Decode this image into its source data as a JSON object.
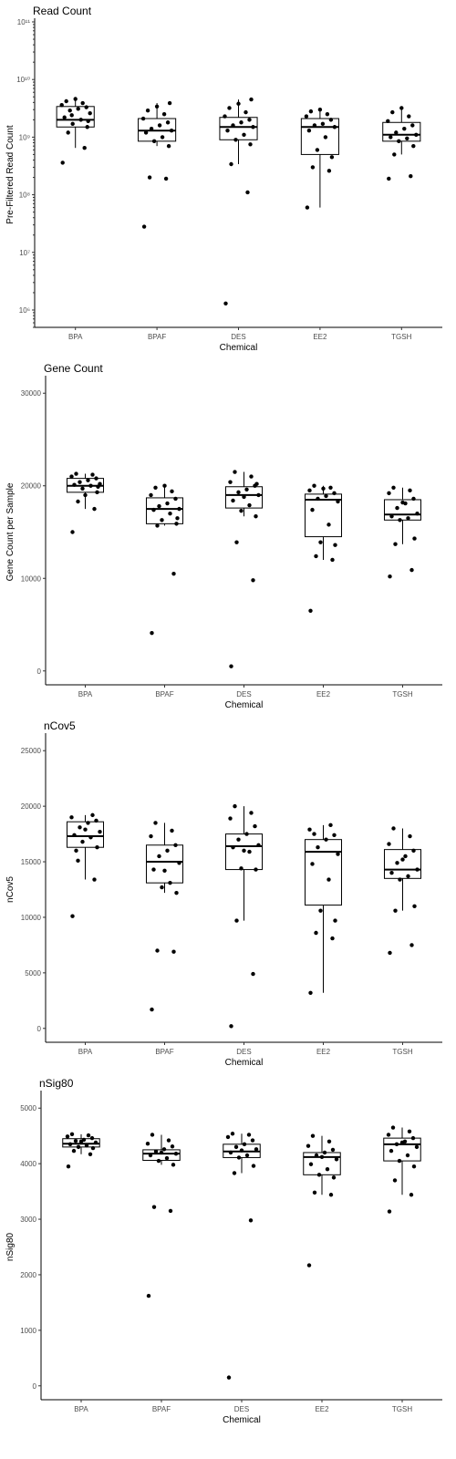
{
  "chart_data": [
    {
      "type": "boxplot",
      "title": "Read Count",
      "xlabel": "Chemical",
      "ylabel": "Pre-Filtered Read Count",
      "scale": "log10",
      "ylim": [
        500000,
        100000000000
      ],
      "yticks": [
        1000000,
        10000000,
        100000000,
        1000000000,
        10000000000,
        100000000000
      ],
      "ytick_labels": [
        "10⁶",
        "10⁷",
        "10⁸",
        "10⁹",
        "10¹⁰",
        "10¹¹"
      ],
      "categories": [
        "BPA",
        "BPAF",
        "DES",
        "EE2",
        "TGSH"
      ],
      "boxes": [
        {
          "q1": 1500000000.0,
          "median": 2000000000.0,
          "q3": 3400000000.0,
          "whislo": 650000000.0,
          "whishi": 4600000000.0
        },
        {
          "q1": 850000000.0,
          "median": 1300000000.0,
          "q3": 2100000000.0,
          "whislo": 700000000.0,
          "whishi": 3900000000.0
        },
        {
          "q1": 900000000.0,
          "median": 1500000000.0,
          "q3": 2200000000.0,
          "whislo": 340000000.0,
          "whishi": 4500000000.0
        },
        {
          "q1": 500000000.0,
          "median": 1500000000.0,
          "q3": 2100000000.0,
          "whislo": 60000000.0,
          "whishi": 3000000000.0
        },
        {
          "q1": 850000000.0,
          "median": 1100000000.0,
          "q3": 1800000000.0,
          "whislo": 500000000.0,
          "whishi": 3200000000.0
        }
      ],
      "points": [
        [
          360000000.0,
          650000000.0,
          1200000000.0,
          1500000000.0,
          1700000000.0,
          2000000000.0,
          2200000000.0,
          2600000000.0,
          2900000000.0,
          3100000000.0,
          3300000000.0,
          3600000000.0,
          3900000000.0,
          4200000000.0,
          4600000000.0,
          1900000000.0,
          2400000000.0
        ],
        [
          28000000.0,
          190000000.0,
          200000000.0,
          700000000.0,
          850000000.0,
          1000000000.0,
          1200000000.0,
          1300000000.0,
          1400000000.0,
          1600000000.0,
          1800000000.0,
          2100000000.0,
          2500000000.0,
          2900000000.0,
          3400000000.0,
          3900000000.0
        ],
        [
          1300000.0,
          110000000.0,
          340000000.0,
          750000000.0,
          900000000.0,
          1100000000.0,
          1300000000.0,
          1500000000.0,
          1600000000.0,
          1800000000.0,
          2000000000.0,
          2300000000.0,
          2700000000.0,
          3200000000.0,
          3800000000.0,
          4500000000.0
        ],
        [
          60000000.0,
          260000000.0,
          300000000.0,
          450000000.0,
          600000000.0,
          1000000000.0,
          1300000000.0,
          1500000000.0,
          1600000000.0,
          1700000000.0,
          2000000000.0,
          2300000000.0,
          2500000000.0,
          2800000000.0,
          3000000000.0
        ],
        [
          190000000.0,
          210000000.0,
          500000000.0,
          700000000.0,
          850000000.0,
          950000000.0,
          1000000000.0,
          1100000000.0,
          1200000000.0,
          1400000000.0,
          1600000000.0,
          1900000000.0,
          2300000000.0,
          2700000000.0,
          3200000000.0
        ]
      ]
    },
    {
      "type": "boxplot",
      "title": "Gene Count",
      "xlabel": "Chemical",
      "ylabel": "Gene Count per Sample",
      "scale": "linear",
      "ylim": [
        -1500,
        31500
      ],
      "yticks": [
        0,
        10000,
        20000,
        30000
      ],
      "ytick_labels": [
        "0",
        "10000",
        "20000",
        "30000"
      ],
      "categories": [
        "BPA",
        "BPAF",
        "DES",
        "EE2",
        "TGSH"
      ],
      "boxes": [
        {
          "q1": 19300,
          "median": 20000,
          "q3": 20800,
          "whislo": 17500,
          "whishi": 21300
        },
        {
          "q1": 15900,
          "median": 17500,
          "q3": 18700,
          "whislo": 15700,
          "whishi": 20000
        },
        {
          "q1": 17600,
          "median": 19000,
          "q3": 19900,
          "whislo": 16700,
          "whishi": 21500
        },
        {
          "q1": 14500,
          "median": 18500,
          "q3": 19100,
          "whislo": 12000,
          "whishi": 20000
        },
        {
          "q1": 16300,
          "median": 16900,
          "q3": 18500,
          "whislo": 13700,
          "whishi": 19800
        }
      ],
      "points": [
        [
          15000,
          17500,
          18300,
          19300,
          19700,
          20000,
          20100,
          20200,
          20400,
          20600,
          20800,
          21000,
          21200,
          21300,
          19000,
          19900
        ],
        [
          4100,
          10500,
          15700,
          15900,
          16300,
          17000,
          17400,
          17500,
          17800,
          18100,
          18600,
          19000,
          19400,
          19800,
          20000,
          16500
        ],
        [
          500,
          9800,
          13900,
          16700,
          17300,
          17900,
          18400,
          19000,
          19300,
          19600,
          20000,
          20400,
          21000,
          21500,
          18800,
          20200
        ],
        [
          6500,
          12000,
          12400,
          13600,
          13900,
          15800,
          17400,
          18300,
          18600,
          18900,
          19200,
          19500,
          19800,
          20000,
          19700
        ],
        [
          10200,
          10900,
          13700,
          14300,
          16300,
          16500,
          16700,
          17000,
          17600,
          18100,
          18600,
          19200,
          19500,
          19800,
          18200
        ]
      ]
    },
    {
      "type": "boxplot",
      "title": "nCov5",
      "xlabel": "Chemical",
      "ylabel": "nCov5",
      "scale": "linear",
      "ylim": [
        -1250,
        26250
      ],
      "yticks": [
        0,
        5000,
        10000,
        15000,
        20000,
        25000
      ],
      "ytick_labels": [
        "0",
        "5000",
        "10000",
        "15000",
        "20000",
        "25000"
      ],
      "categories": [
        "BPA",
        "BPAF",
        "DES",
        "EE2",
        "TGSH"
      ],
      "boxes": [
        {
          "q1": 16300,
          "median": 17300,
          "q3": 18600,
          "whislo": 13400,
          "whishi": 19200
        },
        {
          "q1": 13100,
          "median": 15000,
          "q3": 16500,
          "whislo": 12200,
          "whishi": 18500
        },
        {
          "q1": 14300,
          "median": 16400,
          "q3": 17500,
          "whislo": 9700,
          "whishi": 20000
        },
        {
          "q1": 11100,
          "median": 15900,
          "q3": 17000,
          "whislo": 3200,
          "whishi": 18300
        },
        {
          "q1": 13500,
          "median": 14300,
          "q3": 16100,
          "whislo": 10600,
          "whishi": 18000
        }
      ],
      "points": [
        [
          10100,
          13400,
          15100,
          16300,
          16800,
          17200,
          17400,
          17700,
          18100,
          18500,
          18700,
          19000,
          19200,
          16000,
          17900
        ],
        [
          1700,
          6900,
          7000,
          12200,
          12700,
          13100,
          14300,
          14900,
          15500,
          16000,
          16500,
          17300,
          17800,
          18500,
          14200
        ],
        [
          200,
          4900,
          9700,
          14300,
          14400,
          15900,
          16300,
          16500,
          17000,
          17500,
          18200,
          18900,
          19400,
          20000,
          16000
        ],
        [
          3200,
          8100,
          8600,
          9700,
          10600,
          13400,
          14800,
          15700,
          16300,
          17000,
          17400,
          17900,
          18300,
          17500
        ],
        [
          6800,
          7500,
          10600,
          11000,
          13400,
          13700,
          14000,
          14300,
          14900,
          15500,
          16000,
          16600,
          17300,
          18000,
          15200
        ]
      ]
    },
    {
      "type": "boxplot",
      "title": "nSig80",
      "xlabel": "Chemical",
      "ylabel": "nSig80",
      "scale": "linear",
      "ylim": [
        -250,
        5250
      ],
      "yticks": [
        0,
        1000,
        2000,
        3000,
        4000,
        5000
      ],
      "ytick_labels": [
        "0",
        "1000",
        "2000",
        "3000",
        "4000",
        "5000"
      ],
      "categories": [
        "BPA",
        "BPAF",
        "DES",
        "EE2",
        "TGSH"
      ],
      "boxes": [
        {
          "q1": 4300,
          "median": 4360,
          "q3": 4450,
          "whislo": 4170,
          "whishi": 4530
        },
        {
          "q1": 4060,
          "median": 4180,
          "q3": 4250,
          "whislo": 3980,
          "whishi": 4520
        },
        {
          "q1": 4110,
          "median": 4220,
          "q3": 4350,
          "whislo": 3830,
          "whishi": 4540
        },
        {
          "q1": 3800,
          "median": 4120,
          "q3": 4200,
          "whislo": 3440,
          "whishi": 4500
        },
        {
          "q1": 4050,
          "median": 4350,
          "q3": 4460,
          "whislo": 3440,
          "whishi": 4650
        }
      ],
      "points": [
        [
          3950,
          4170,
          4230,
          4280,
          4300,
          4330,
          4350,
          4380,
          4410,
          4430,
          4460,
          4490,
          4510,
          4530,
          4400
        ],
        [
          1620,
          3150,
          3220,
          3980,
          4050,
          4100,
          4150,
          4180,
          4220,
          4260,
          4310,
          4360,
          4420,
          4520,
          4200
        ],
        [
          150,
          2980,
          3830,
          3960,
          4110,
          4150,
          4200,
          4260,
          4300,
          4350,
          4420,
          4480,
          4520,
          4540,
          4240
        ],
        [
          2170,
          3440,
          3480,
          3750,
          3800,
          3900,
          3990,
          4080,
          4150,
          4200,
          4250,
          4320,
          4400,
          4500,
          4120
        ],
        [
          3140,
          3440,
          3700,
          3950,
          4050,
          4150,
          4230,
          4300,
          4350,
          4400,
          4460,
          4520,
          4580,
          4650,
          4380
        ]
      ]
    }
  ]
}
